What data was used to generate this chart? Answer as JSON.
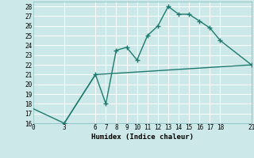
{
  "title": "",
  "xlabel": "Humidex (Indice chaleur)",
  "ylabel": "",
  "bg_color": "#cce8e8",
  "line_color": "#1e7a6e",
  "grid_color": "#ffffff",
  "xlim": [
    0,
    21
  ],
  "ylim": [
    16,
    28.5
  ],
  "xticks": [
    0,
    3,
    6,
    7,
    8,
    9,
    10,
    11,
    12,
    13,
    14,
    15,
    16,
    17,
    18,
    21
  ],
  "yticks": [
    16,
    17,
    18,
    19,
    20,
    21,
    22,
    23,
    24,
    25,
    26,
    27,
    28
  ],
  "line1_x": [
    3,
    6,
    7,
    8,
    9,
    10,
    11,
    12,
    13,
    14,
    15,
    16,
    17,
    18,
    21
  ],
  "line1_y": [
    16,
    21,
    18,
    23.5,
    23.8,
    22.5,
    25,
    26,
    28,
    27.2,
    27.2,
    26.5,
    25.8,
    24.5,
    22
  ],
  "line2_x": [
    0,
    3,
    6,
    21
  ],
  "line2_y": [
    17.5,
    16,
    21,
    22
  ]
}
